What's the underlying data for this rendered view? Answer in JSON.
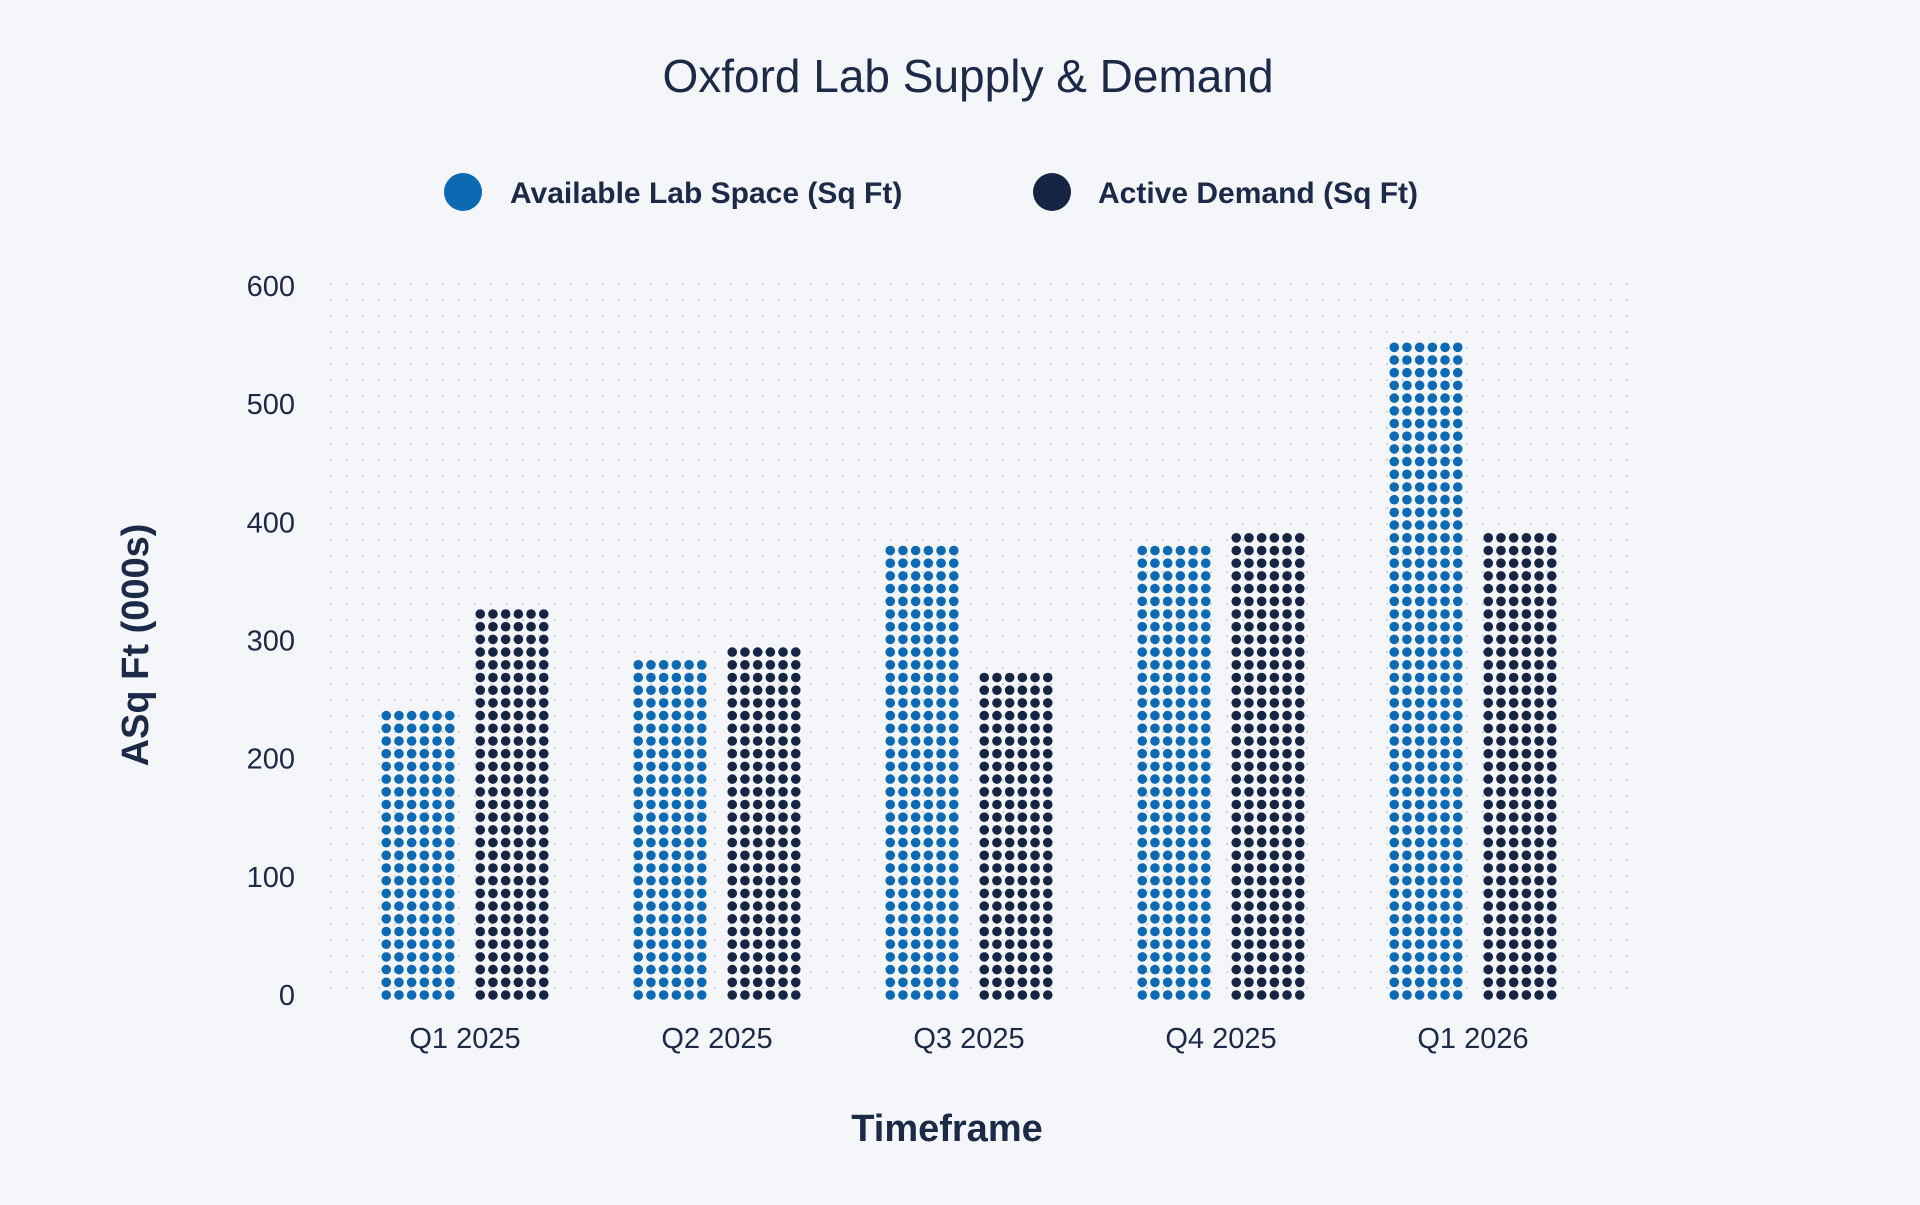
{
  "chart_data": {
    "type": "bar",
    "title": "Oxford Lab Supply & Demand",
    "xlabel": "Timeframe",
    "ylabel": "ASq Ft (000s)",
    "categories": [
      "Q1 2025",
      "Q2 2025",
      "Q3 2025",
      "Q4 2025",
      "Q1 2026"
    ],
    "series": [
      {
        "name": "Available Lab Space (Sq Ft)",
        "color": "#0b6ab3",
        "values": [
          245,
          285,
          380,
          380,
          550
        ]
      },
      {
        "name": "Active Demand (Sq Ft)",
        "color": "#162544",
        "values": [
          325,
          300,
          272,
          392,
          392
        ]
      }
    ],
    "ylim": [
      0,
      600
    ],
    "yticks": [
      0,
      100,
      200,
      300,
      400,
      500,
      600
    ],
    "legend_position": "top-center",
    "grid": "dotted"
  }
}
